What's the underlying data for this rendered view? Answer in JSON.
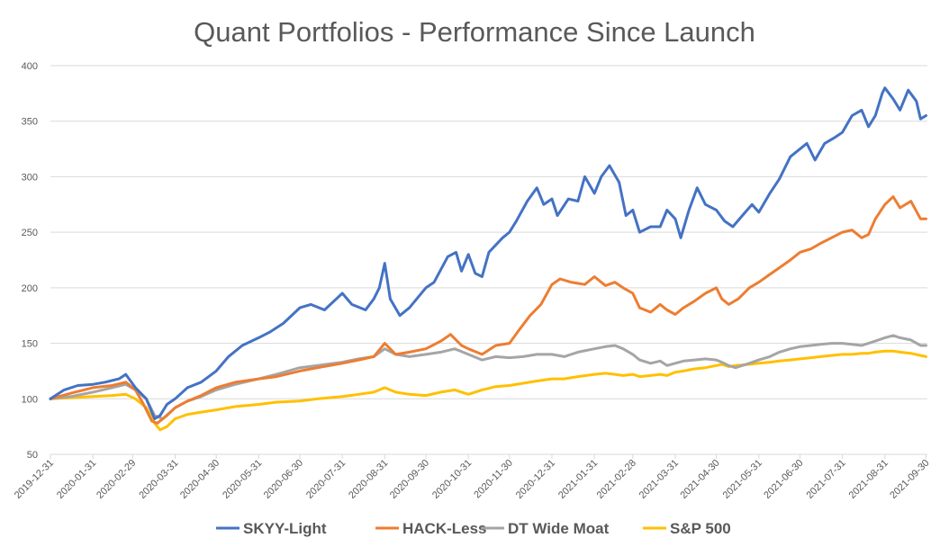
{
  "chart_data": {
    "type": "line",
    "title": "Quant Portfolios - Performance Since Launch",
    "xlabel": "",
    "ylabel": "",
    "ylim": [
      50,
      400
    ],
    "yticks": [
      50,
      100,
      150,
      200,
      250,
      300,
      350,
      400
    ],
    "grid": "horizontal",
    "legend_position": "bottom",
    "x_tick_labels": [
      "2019-12-31",
      "2020-01-31",
      "2020-02-29",
      "2020-03-31",
      "2020-04-30",
      "2020-05-31",
      "2020-06-30",
      "2020-07-31",
      "2020-08-31",
      "2020-09-30",
      "2020-10-31",
      "2020-11-30",
      "2020-12-31",
      "2021-01-31",
      "2021-02-28",
      "2021-03-31",
      "2021-04-30",
      "2021-05-31",
      "2021-06-30",
      "2021-07-31",
      "2021-08-31",
      "2021-09-30"
    ],
    "x_tick_days": [
      0,
      31,
      60,
      91,
      121,
      152,
      182,
      213,
      244,
      274,
      305,
      335,
      366,
      397,
      425,
      456,
      486,
      517,
      547,
      578,
      609,
      639
    ],
    "x_range_days": [
      0,
      640
    ],
    "series": [
      {
        "name": "SKYY-Light",
        "color": "#4472C4",
        "points": [
          [
            0,
            100
          ],
          [
            10,
            108
          ],
          [
            20,
            112
          ],
          [
            31,
            113
          ],
          [
            40,
            115
          ],
          [
            50,
            118
          ],
          [
            55,
            122
          ],
          [
            62,
            110
          ],
          [
            70,
            100
          ],
          [
            76,
            82
          ],
          [
            80,
            85
          ],
          [
            85,
            95
          ],
          [
            91,
            100
          ],
          [
            100,
            110
          ],
          [
            110,
            115
          ],
          [
            121,
            125
          ],
          [
            130,
            138
          ],
          [
            140,
            148
          ],
          [
            152,
            155
          ],
          [
            160,
            160
          ],
          [
            170,
            168
          ],
          [
            182,
            182
          ],
          [
            190,
            185
          ],
          [
            200,
            180
          ],
          [
            213,
            195
          ],
          [
            220,
            185
          ],
          [
            230,
            180
          ],
          [
            236,
            190
          ],
          [
            240,
            200
          ],
          [
            244,
            222
          ],
          [
            248,
            190
          ],
          [
            255,
            175
          ],
          [
            262,
            182
          ],
          [
            274,
            200
          ],
          [
            280,
            205
          ],
          [
            290,
            228
          ],
          [
            296,
            232
          ],
          [
            300,
            215
          ],
          [
            305,
            230
          ],
          [
            310,
            213
          ],
          [
            315,
            210
          ],
          [
            320,
            232
          ],
          [
            330,
            245
          ],
          [
            335,
            250
          ],
          [
            340,
            260
          ],
          [
            348,
            278
          ],
          [
            355,
            290
          ],
          [
            360,
            275
          ],
          [
            366,
            280
          ],
          [
            370,
            265
          ],
          [
            378,
            280
          ],
          [
            385,
            278
          ],
          [
            390,
            300
          ],
          [
            397,
            285
          ],
          [
            402,
            300
          ],
          [
            408,
            310
          ],
          [
            415,
            295
          ],
          [
            420,
            265
          ],
          [
            425,
            270
          ],
          [
            430,
            250
          ],
          [
            438,
            255
          ],
          [
            445,
            255
          ],
          [
            450,
            270
          ],
          [
            456,
            262
          ],
          [
            460,
            245
          ],
          [
            466,
            270
          ],
          [
            472,
            290
          ],
          [
            478,
            275
          ],
          [
            486,
            270
          ],
          [
            492,
            260
          ],
          [
            498,
            255
          ],
          [
            505,
            265
          ],
          [
            512,
            275
          ],
          [
            517,
            268
          ],
          [
            525,
            285
          ],
          [
            532,
            298
          ],
          [
            540,
            318
          ],
          [
            547,
            325
          ],
          [
            552,
            330
          ],
          [
            558,
            315
          ],
          [
            565,
            330
          ],
          [
            572,
            335
          ],
          [
            578,
            340
          ],
          [
            585,
            355
          ],
          [
            592,
            360
          ],
          [
            597,
            345
          ],
          [
            602,
            355
          ],
          [
            607,
            375
          ],
          [
            609,
            380
          ],
          [
            615,
            370
          ],
          [
            620,
            360
          ],
          [
            626,
            378
          ],
          [
            632,
            368
          ],
          [
            635,
            352
          ],
          [
            639,
            355
          ]
        ]
      },
      {
        "name": "HACK-Less",
        "color": "#ED7D31",
        "points": [
          [
            0,
            100
          ],
          [
            15,
            105
          ],
          [
            31,
            110
          ],
          [
            45,
            112
          ],
          [
            55,
            115
          ],
          [
            62,
            108
          ],
          [
            68,
            95
          ],
          [
            74,
            80
          ],
          [
            78,
            78
          ],
          [
            85,
            85
          ],
          [
            91,
            92
          ],
          [
            100,
            98
          ],
          [
            110,
            103
          ],
          [
            121,
            110
          ],
          [
            135,
            115
          ],
          [
            152,
            118
          ],
          [
            165,
            120
          ],
          [
            182,
            125
          ],
          [
            195,
            128
          ],
          [
            213,
            132
          ],
          [
            225,
            135
          ],
          [
            236,
            138
          ],
          [
            244,
            150
          ],
          [
            252,
            140
          ],
          [
            262,
            142
          ],
          [
            274,
            145
          ],
          [
            285,
            152
          ],
          [
            292,
            158
          ],
          [
            300,
            148
          ],
          [
            305,
            145
          ],
          [
            315,
            140
          ],
          [
            325,
            148
          ],
          [
            335,
            150
          ],
          [
            342,
            162
          ],
          [
            350,
            175
          ],
          [
            358,
            185
          ],
          [
            366,
            203
          ],
          [
            372,
            208
          ],
          [
            380,
            205
          ],
          [
            390,
            203
          ],
          [
            397,
            210
          ],
          [
            405,
            202
          ],
          [
            412,
            205
          ],
          [
            418,
            200
          ],
          [
            425,
            195
          ],
          [
            430,
            182
          ],
          [
            438,
            178
          ],
          [
            445,
            185
          ],
          [
            450,
            180
          ],
          [
            456,
            176
          ],
          [
            462,
            182
          ],
          [
            470,
            188
          ],
          [
            478,
            195
          ],
          [
            486,
            200
          ],
          [
            490,
            190
          ],
          [
            495,
            185
          ],
          [
            502,
            190
          ],
          [
            510,
            200
          ],
          [
            517,
            205
          ],
          [
            525,
            212
          ],
          [
            532,
            218
          ],
          [
            540,
            225
          ],
          [
            547,
            232
          ],
          [
            555,
            235
          ],
          [
            562,
            240
          ],
          [
            570,
            245
          ],
          [
            578,
            250
          ],
          [
            585,
            252
          ],
          [
            592,
            245
          ],
          [
            597,
            248
          ],
          [
            602,
            262
          ],
          [
            609,
            275
          ],
          [
            615,
            282
          ],
          [
            620,
            272
          ],
          [
            628,
            278
          ],
          [
            635,
            262
          ],
          [
            639,
            262
          ]
        ]
      },
      {
        "name": "DT Wide Moat",
        "color": "#A5A5A5",
        "points": [
          [
            0,
            100
          ],
          [
            15,
            102
          ],
          [
            31,
            106
          ],
          [
            45,
            110
          ],
          [
            55,
            113
          ],
          [
            62,
            108
          ],
          [
            70,
            100
          ],
          [
            76,
            85
          ],
          [
            82,
            82
          ],
          [
            91,
            92
          ],
          [
            100,
            98
          ],
          [
            110,
            102
          ],
          [
            121,
            108
          ],
          [
            135,
            113
          ],
          [
            152,
            118
          ],
          [
            165,
            122
          ],
          [
            182,
            128
          ],
          [
            195,
            130
          ],
          [
            213,
            133
          ],
          [
            225,
            136
          ],
          [
            236,
            138
          ],
          [
            244,
            145
          ],
          [
            252,
            140
          ],
          [
            262,
            138
          ],
          [
            274,
            140
          ],
          [
            285,
            142
          ],
          [
            295,
            145
          ],
          [
            305,
            140
          ],
          [
            315,
            135
          ],
          [
            325,
            138
          ],
          [
            335,
            137
          ],
          [
            345,
            138
          ],
          [
            355,
            140
          ],
          [
            366,
            140
          ],
          [
            375,
            138
          ],
          [
            385,
            142
          ],
          [
            397,
            145
          ],
          [
            405,
            147
          ],
          [
            412,
            148
          ],
          [
            418,
            145
          ],
          [
            425,
            140
          ],
          [
            430,
            135
          ],
          [
            438,
            132
          ],
          [
            445,
            134
          ],
          [
            450,
            130
          ],
          [
            456,
            132
          ],
          [
            462,
            134
          ],
          [
            470,
            135
          ],
          [
            478,
            136
          ],
          [
            486,
            135
          ],
          [
            490,
            133
          ],
          [
            495,
            130
          ],
          [
            500,
            128
          ],
          [
            510,
            132
          ],
          [
            517,
            135
          ],
          [
            525,
            138
          ],
          [
            532,
            142
          ],
          [
            540,
            145
          ],
          [
            547,
            147
          ],
          [
            555,
            148
          ],
          [
            562,
            149
          ],
          [
            570,
            150
          ],
          [
            578,
            150
          ],
          [
            585,
            149
          ],
          [
            592,
            148
          ],
          [
            597,
            150
          ],
          [
            602,
            152
          ],
          [
            609,
            155
          ],
          [
            615,
            157
          ],
          [
            620,
            155
          ],
          [
            628,
            153
          ],
          [
            635,
            148
          ],
          [
            639,
            148
          ]
        ]
      },
      {
        "name": "S&P 500",
        "color": "#FFC000",
        "points": [
          [
            0,
            100
          ],
          [
            15,
            101
          ],
          [
            31,
            102
          ],
          [
            45,
            103
          ],
          [
            55,
            104
          ],
          [
            62,
            100
          ],
          [
            70,
            92
          ],
          [
            76,
            78
          ],
          [
            80,
            72
          ],
          [
            85,
            75
          ],
          [
            91,
            82
          ],
          [
            100,
            86
          ],
          [
            110,
            88
          ],
          [
            121,
            90
          ],
          [
            135,
            93
          ],
          [
            152,
            95
          ],
          [
            165,
            97
          ],
          [
            182,
            98
          ],
          [
            195,
            100
          ],
          [
            213,
            102
          ],
          [
            225,
            104
          ],
          [
            236,
            106
          ],
          [
            244,
            110
          ],
          [
            252,
            106
          ],
          [
            262,
            104
          ],
          [
            274,
            103
          ],
          [
            285,
            106
          ],
          [
            295,
            108
          ],
          [
            305,
            104
          ],
          [
            315,
            108
          ],
          [
            325,
            111
          ],
          [
            335,
            112
          ],
          [
            345,
            114
          ],
          [
            355,
            116
          ],
          [
            366,
            118
          ],
          [
            375,
            118
          ],
          [
            385,
            120
          ],
          [
            397,
            122
          ],
          [
            405,
            123
          ],
          [
            412,
            122
          ],
          [
            418,
            121
          ],
          [
            425,
            122
          ],
          [
            430,
            120
          ],
          [
            438,
            121
          ],
          [
            445,
            122
          ],
          [
            450,
            121
          ],
          [
            456,
            124
          ],
          [
            462,
            125
          ],
          [
            470,
            127
          ],
          [
            478,
            128
          ],
          [
            486,
            130
          ],
          [
            490,
            131
          ],
          [
            495,
            129
          ],
          [
            500,
            130
          ],
          [
            510,
            131
          ],
          [
            517,
            132
          ],
          [
            525,
            133
          ],
          [
            532,
            134
          ],
          [
            540,
            135
          ],
          [
            547,
            136
          ],
          [
            555,
            137
          ],
          [
            562,
            138
          ],
          [
            570,
            139
          ],
          [
            578,
            140
          ],
          [
            585,
            140
          ],
          [
            592,
            141
          ],
          [
            597,
            141
          ],
          [
            602,
            142
          ],
          [
            609,
            143
          ],
          [
            615,
            143
          ],
          [
            620,
            142
          ],
          [
            628,
            141
          ],
          [
            635,
            139
          ],
          [
            639,
            138
          ]
        ]
      }
    ]
  }
}
